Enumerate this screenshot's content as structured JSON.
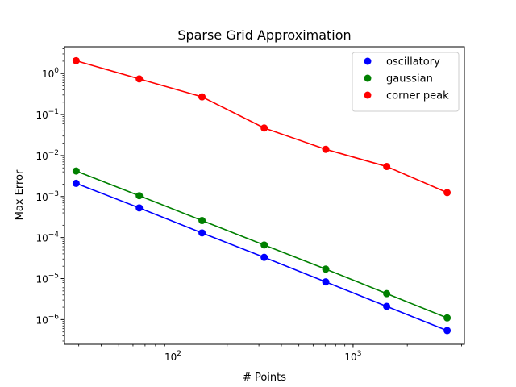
{
  "chart_data": {
    "type": "line",
    "title": "Sparse Grid Approximation",
    "xlabel": "# Points",
    "ylabel": "Max Error",
    "xscale": "log",
    "yscale": "log",
    "xlim": [
      25,
      4150
    ],
    "ylim": [
      2.5e-07,
      4.5
    ],
    "x_ticks": [
      {
        "value": 100,
        "base": "10",
        "exp": "2"
      },
      {
        "value": 1000,
        "base": "10",
        "exp": "3"
      }
    ],
    "y_ticks": [
      {
        "value": 1,
        "base": "10",
        "exp": "0"
      },
      {
        "value": 0.1,
        "base": "10",
        "exp": "−1"
      },
      {
        "value": 0.01,
        "base": "10",
        "exp": "−2"
      },
      {
        "value": 0.001,
        "base": "10",
        "exp": "−3"
      },
      {
        "value": 0.0001,
        "base": "10",
        "exp": "−4"
      },
      {
        "value": 1e-05,
        "base": "10",
        "exp": "−5"
      },
      {
        "value": 1e-06,
        "base": "10",
        "exp": "−6"
      }
    ],
    "grid": false,
    "legend_position": "top-right",
    "x": [
      29,
      65,
      145,
      321,
      705,
      1537,
      3329
    ],
    "series": [
      {
        "name": "oscillatory",
        "color": "#0000ff",
        "values": [
          0.0021,
          0.00053,
          0.00013,
          3.3e-05,
          8.3e-06,
          2.1e-06,
          5.4e-07
        ]
      },
      {
        "name": "gaussian",
        "color": "#008000",
        "values": [
          0.0042,
          0.00105,
          0.00026,
          6.6e-05,
          1.7e-05,
          4.3e-06,
          1.1e-06
        ]
      },
      {
        "name": "corner peak",
        "color": "#ff0000",
        "values": [
          2.05,
          0.74,
          0.27,
          0.047,
          0.0142,
          0.0054,
          0.00125
        ]
      }
    ]
  }
}
